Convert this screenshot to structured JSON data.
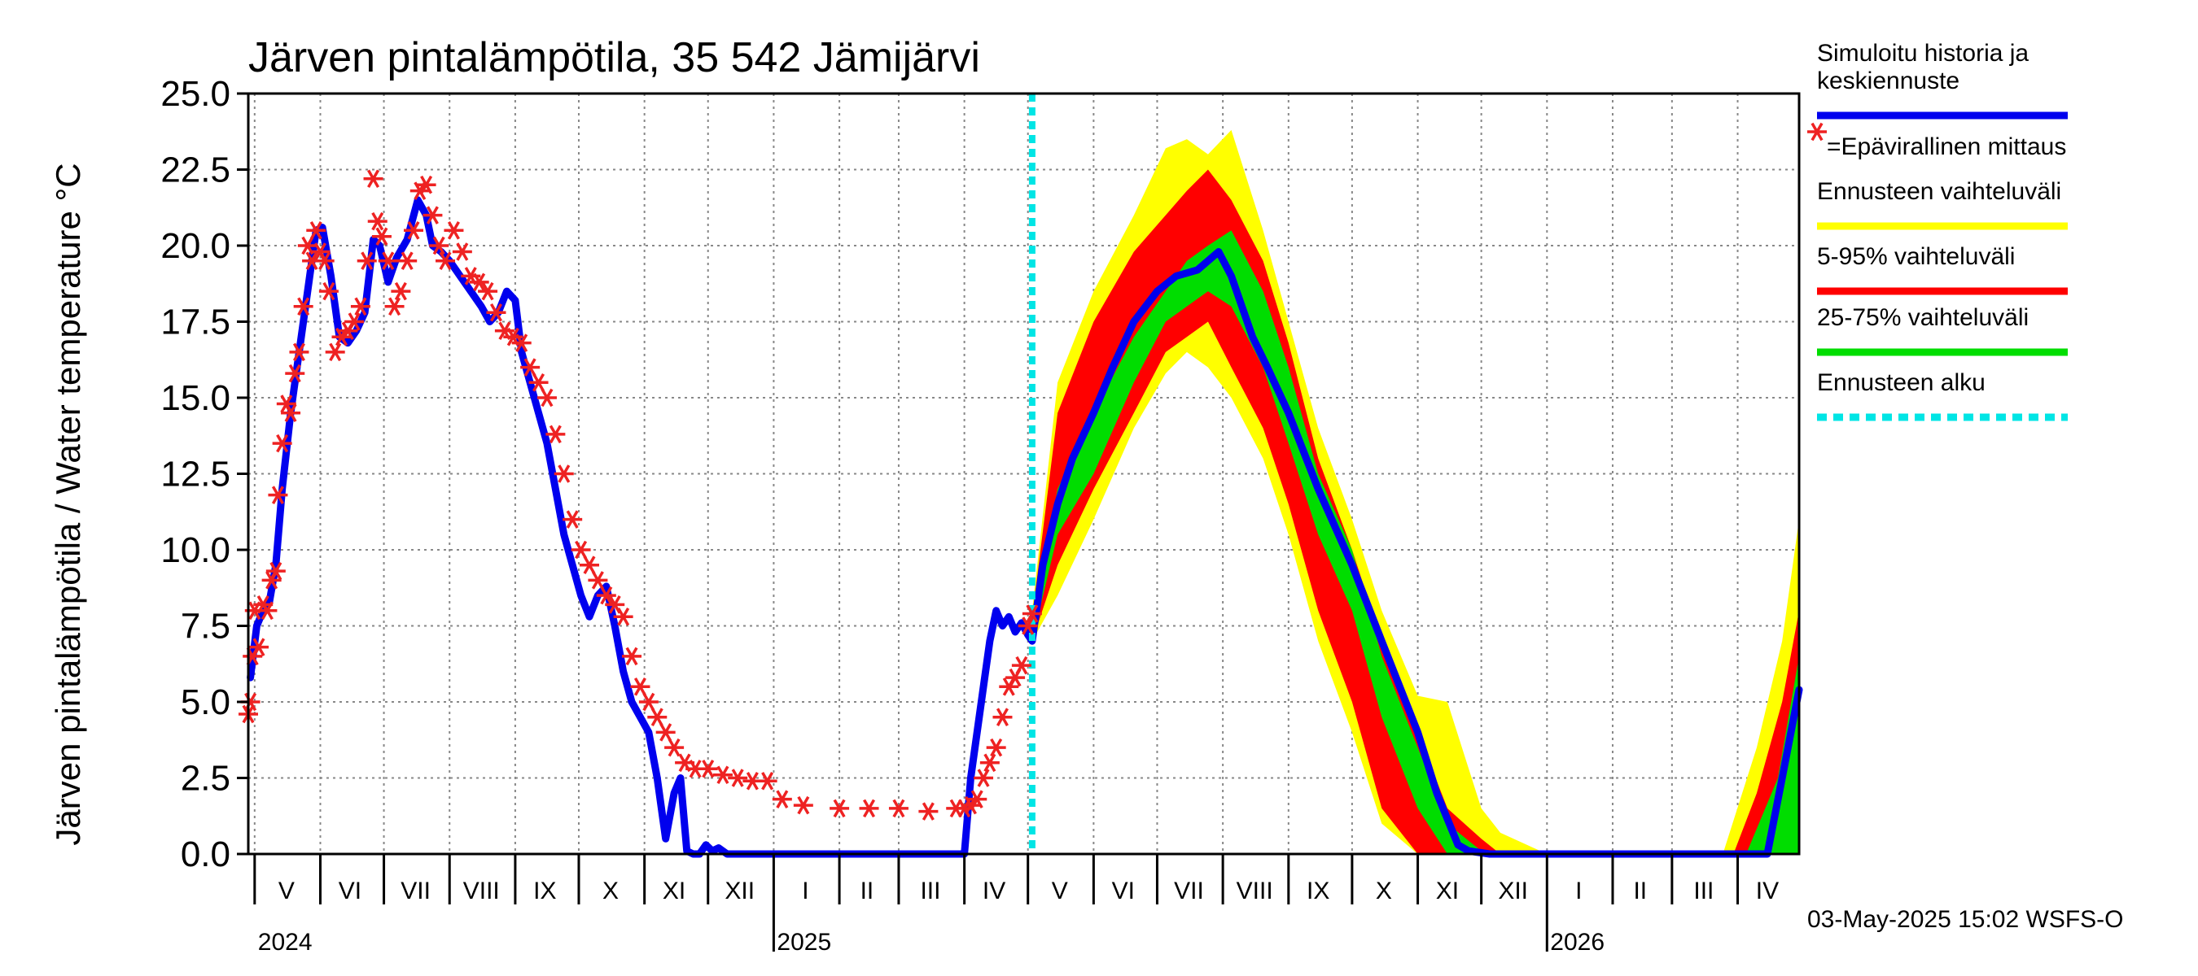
{
  "chart_data": {
    "type": "area",
    "title": "Järven pintalämpötila, 35 542 Jämijärvi",
    "ylabel": "Järven pintalämpötila / Water temperature °C",
    "xlabel": "",
    "ylim": [
      0,
      25
    ],
    "xlim": [
      "2024-04-28",
      "2026-04-30"
    ],
    "yticks": [
      "0.0",
      "2.5",
      "5.0",
      "7.5",
      "10.0",
      "12.5",
      "15.0",
      "17.5",
      "20.0",
      "22.5",
      "25.0"
    ],
    "grid": true,
    "legend_position": "right",
    "forecast_start": "2025-05-03",
    "month_labels": [
      {
        "label": "V",
        "date": "2024-05-16"
      },
      {
        "label": "VI",
        "date": "2024-06-15"
      },
      {
        "label": "VII",
        "date": "2024-07-16"
      },
      {
        "label": "VIII",
        "date": "2024-08-16"
      },
      {
        "label": "IX",
        "date": "2024-09-15"
      },
      {
        "label": "X",
        "date": "2024-10-16"
      },
      {
        "label": "XI",
        "date": "2024-11-15"
      },
      {
        "label": "XII",
        "date": "2024-12-16"
      },
      {
        "label": "I",
        "date": "2025-01-16"
      },
      {
        "label": "II",
        "date": "2025-02-14"
      },
      {
        "label": "III",
        "date": "2025-03-16"
      },
      {
        "label": "IV",
        "date": "2025-04-15"
      },
      {
        "label": "V",
        "date": "2025-05-16"
      },
      {
        "label": "VI",
        "date": "2025-06-15"
      },
      {
        "label": "VII",
        "date": "2025-07-16"
      },
      {
        "label": "VIII",
        "date": "2025-08-16"
      },
      {
        "label": "IX",
        "date": "2025-09-15"
      },
      {
        "label": "X",
        "date": "2025-10-16"
      },
      {
        "label": "XI",
        "date": "2025-11-15"
      },
      {
        "label": "XII",
        "date": "2025-12-16"
      },
      {
        "label": "I",
        "date": "2026-01-16"
      },
      {
        "label": "II",
        "date": "2026-02-14"
      },
      {
        "label": "III",
        "date": "2026-03-16"
      },
      {
        "label": "IV",
        "date": "2026-04-15"
      }
    ],
    "year_labels": [
      {
        "label": "2024",
        "date": "2024-05-01"
      },
      {
        "label": "2025",
        "date": "2025-01-01"
      },
      {
        "label": "2026",
        "date": "2026-01-01"
      }
    ],
    "series": [
      {
        "name": "Simuloitu historia ja keskiennuste",
        "color": "#0000ee",
        "x": [
          "2024-04-29",
          "2024-05-02",
          "2024-05-05",
          "2024-05-08",
          "2024-05-11",
          "2024-05-14",
          "2024-05-18",
          "2024-05-22",
          "2024-05-26",
          "2024-05-30",
          "2024-06-02",
          "2024-06-06",
          "2024-06-10",
          "2024-06-14",
          "2024-06-18",
          "2024-06-22",
          "2024-06-26",
          "2024-06-29",
          "2024-07-03",
          "2024-07-07",
          "2024-07-12",
          "2024-07-17",
          "2024-07-21",
          "2024-07-24",
          "2024-07-28",
          "2024-08-01",
          "2024-08-06",
          "2024-08-11",
          "2024-08-16",
          "2024-08-20",
          "2024-08-24",
          "2024-08-28",
          "2024-09-01",
          "2024-09-04",
          "2024-09-08",
          "2024-09-12",
          "2024-09-16",
          "2024-09-20",
          "2024-09-24",
          "2024-09-28",
          "2024-10-02",
          "2024-10-06",
          "2024-10-10",
          "2024-10-14",
          "2024-10-18",
          "2024-10-22",
          "2024-10-26",
          "2024-10-30",
          "2024-11-03",
          "2024-11-07",
          "2024-11-11",
          "2024-11-15",
          "2024-11-18",
          "2024-11-21",
          "2024-11-24",
          "2024-11-27",
          "2024-11-30",
          "2024-12-03",
          "2024-12-06",
          "2024-12-10",
          "2024-12-16",
          "2024-12-22",
          "2024-12-28",
          "2025-01-01",
          "2025-01-15",
          "2025-02-01",
          "2025-02-15",
          "2025-03-01",
          "2025-03-15",
          "2025-04-01",
          "2025-04-04",
          "2025-04-07",
          "2025-04-10",
          "2025-04-13",
          "2025-04-16",
          "2025-04-19",
          "2025-04-22",
          "2025-04-25",
          "2025-04-28",
          "2025-05-01",
          "2025-05-03",
          "2025-05-08",
          "2025-05-15",
          "2025-05-22",
          "2025-06-01",
          "2025-06-10",
          "2025-06-20",
          "2025-07-01",
          "2025-07-10",
          "2025-07-20",
          "2025-07-30",
          "2025-08-05",
          "2025-08-10",
          "2025-08-15",
          "2025-08-22",
          "2025-09-01",
          "2025-09-15",
          "2025-10-01",
          "2025-10-15",
          "2025-11-01",
          "2025-11-10",
          "2025-11-20",
          "2025-11-25",
          "2025-12-05",
          "2026-01-01",
          "2026-02-01",
          "2026-03-01",
          "2026-04-01",
          "2026-04-15",
          "2026-04-22",
          "2026-04-30"
        ],
        "y": [
          5.8,
          7.5,
          8.0,
          8.3,
          9.5,
          12.0,
          14.5,
          16.5,
          18.5,
          20.5,
          20.6,
          19.0,
          17.0,
          16.8,
          17.2,
          17.8,
          20.2,
          20.0,
          18.8,
          19.6,
          20.2,
          21.5,
          21.0,
          20.0,
          19.8,
          19.5,
          19.0,
          18.5,
          18.0,
          17.5,
          17.8,
          18.5,
          18.2,
          16.5,
          15.5,
          14.5,
          13.5,
          12.0,
          10.5,
          9.5,
          8.5,
          7.8,
          8.5,
          8.8,
          7.5,
          6.0,
          5.0,
          4.5,
          4.0,
          2.5,
          0.5,
          2.0,
          2.5,
          0.1,
          0.0,
          0.0,
          0.3,
          0.1,
          0.2,
          0.0,
          0.0,
          0.0,
          0.0,
          0.0,
          0.0,
          0.0,
          0.0,
          0.0,
          0.0,
          0.0,
          2.5,
          4.0,
          5.5,
          7.0,
          8.0,
          7.5,
          7.8,
          7.3,
          7.6,
          7.2,
          7.0,
          9.5,
          11.5,
          13.0,
          14.5,
          16.0,
          17.5,
          18.5,
          19.0,
          19.2,
          19.8,
          19.0,
          18.0,
          17.0,
          16.0,
          14.5,
          12.0,
          9.5,
          7.0,
          4.0,
          2.0,
          0.3,
          0.1,
          0.0,
          0.0,
          0.0,
          0.0,
          0.0,
          0.0,
          2.5,
          5.4
        ]
      },
      {
        "name": "=Epävirallinen mittaus",
        "color": "#ee2222",
        "marker": "asterisk",
        "x": [
          "2024-04-28",
          "2024-04-29",
          "2024-04-30",
          "2024-05-01",
          "2024-05-03",
          "2024-05-05",
          "2024-05-07",
          "2024-05-09",
          "2024-05-11",
          "2024-05-12",
          "2024-05-14",
          "2024-05-16",
          "2024-05-18",
          "2024-05-20",
          "2024-05-22",
          "2024-05-24",
          "2024-05-26",
          "2024-05-28",
          "2024-05-30",
          "2024-06-01",
          "2024-06-03",
          "2024-06-05",
          "2024-06-08",
          "2024-06-11",
          "2024-06-14",
          "2024-06-17",
          "2024-06-20",
          "2024-06-23",
          "2024-06-26",
          "2024-06-28",
          "2024-06-30",
          "2024-07-03",
          "2024-07-06",
          "2024-07-09",
          "2024-07-12",
          "2024-07-15",
          "2024-07-18",
          "2024-07-21",
          "2024-07-24",
          "2024-07-27",
          "2024-07-30",
          "2024-08-03",
          "2024-08-07",
          "2024-08-11",
          "2024-08-15",
          "2024-08-19",
          "2024-08-23",
          "2024-08-27",
          "2024-08-31",
          "2024-09-04",
          "2024-09-08",
          "2024-09-12",
          "2024-09-16",
          "2024-09-20",
          "2024-09-24",
          "2024-09-28",
          "2024-10-02",
          "2024-10-06",
          "2024-10-10",
          "2024-10-14",
          "2024-10-18",
          "2024-10-22",
          "2024-10-26",
          "2024-10-30",
          "2024-11-03",
          "2024-11-07",
          "2024-11-11",
          "2024-11-15",
          "2024-11-20",
          "2024-11-25",
          "2024-12-01",
          "2024-12-08",
          "2024-12-15",
          "2024-12-22",
          "2024-12-29",
          "2025-01-05",
          "2025-01-15",
          "2025-02-01",
          "2025-02-15",
          "2025-03-01",
          "2025-03-15",
          "2025-03-28",
          "2025-04-01",
          "2025-04-04",
          "2025-04-07",
          "2025-04-10",
          "2025-04-13",
          "2025-04-16",
          "2025-04-19",
          "2025-04-22",
          "2025-04-25",
          "2025-04-28",
          "2025-05-01",
          "2025-05-03"
        ],
        "y": [
          4.6,
          5.0,
          6.5,
          8.0,
          6.8,
          8.2,
          8.0,
          9.0,
          9.3,
          11.8,
          13.5,
          14.8,
          14.5,
          15.8,
          16.5,
          18.0,
          20.0,
          19.5,
          20.5,
          19.8,
          19.5,
          18.5,
          16.5,
          17.0,
          17.2,
          17.5,
          18.0,
          19.5,
          22.2,
          20.8,
          20.3,
          19.5,
          18.0,
          18.5,
          19.5,
          20.5,
          21.8,
          22.0,
          21.0,
          20.0,
          19.5,
          20.5,
          19.8,
          19.0,
          18.8,
          18.5,
          17.8,
          17.2,
          17.0,
          16.8,
          16.0,
          15.5,
          15.0,
          13.8,
          12.5,
          11.0,
          10.0,
          9.5,
          9.0,
          8.5,
          8.2,
          7.8,
          6.5,
          5.5,
          5.0,
          4.5,
          4.0,
          3.5,
          3.0,
          2.8,
          2.8,
          2.6,
          2.5,
          2.4,
          2.4,
          1.8,
          1.6,
          1.5,
          1.5,
          1.5,
          1.4,
          1.5,
          1.5,
          1.6,
          1.8,
          2.5,
          3.0,
          3.5,
          4.5,
          5.5,
          5.8,
          6.2,
          7.5,
          7.9
        ]
      },
      {
        "name": "Ennusteen vaihteluväli",
        "color": "#ffff00",
        "x": [
          "2025-05-03",
          "2025-05-15",
          "2025-06-01",
          "2025-06-20",
          "2025-07-05",
          "2025-07-15",
          "2025-07-25",
          "2025-08-05",
          "2025-08-20",
          "2025-09-01",
          "2025-09-15",
          "2025-10-01",
          "2025-10-15",
          "2025-11-01",
          "2025-11-15",
          "2025-12-01",
          "2025-12-10",
          "2026-01-01",
          "2026-03-25",
          "2026-04-10",
          "2026-04-22",
          "2026-04-30"
        ],
        "upper": [
          8.0,
          15.5,
          18.5,
          21.0,
          23.2,
          23.5,
          23.0,
          23.8,
          20.5,
          17.5,
          14.0,
          11.0,
          8.0,
          5.2,
          5.0,
          1.5,
          0.7,
          0.0,
          0.0,
          3.5,
          7.0,
          11.0
        ],
        "lower": [
          7.0,
          8.5,
          11.0,
          14.0,
          15.8,
          16.5,
          16.0,
          15.0,
          13.0,
          10.5,
          7.0,
          4.0,
          1.0,
          0.0,
          0.0,
          0.0,
          0.0,
          0.0,
          0.0,
          0.0,
          0.0,
          0.0
        ]
      },
      {
        "name": "5-95% vaihteluväli",
        "color": "#ff0000",
        "x": [
          "2025-05-03",
          "2025-05-15",
          "2025-06-01",
          "2025-06-20",
          "2025-07-05",
          "2025-07-15",
          "2025-07-25",
          "2025-08-05",
          "2025-08-20",
          "2025-09-01",
          "2025-09-15",
          "2025-10-01",
          "2025-10-15",
          "2025-11-01",
          "2025-11-15",
          "2025-12-01",
          "2025-12-10",
          "2026-01-01",
          "2026-03-30",
          "2026-04-10",
          "2026-04-22",
          "2026-04-30"
        ],
        "upper": [
          7.8,
          14.5,
          17.5,
          19.8,
          21.0,
          21.8,
          22.5,
          21.5,
          19.5,
          16.8,
          13.0,
          10.0,
          7.0,
          4.0,
          1.5,
          0.5,
          0.0,
          0.0,
          0.0,
          2.0,
          5.0,
          8.0
        ],
        "lower": [
          7.0,
          9.5,
          12.0,
          14.5,
          16.5,
          17.0,
          17.5,
          16.0,
          14.0,
          11.5,
          8.0,
          5.0,
          1.5,
          0.0,
          0.0,
          0.0,
          0.0,
          0.0,
          0.0,
          0.0,
          0.0,
          0.0
        ]
      },
      {
        "name": "25-75% vaihteluväli",
        "color": "#00dd00",
        "x": [
          "2025-05-03",
          "2025-05-15",
          "2025-06-01",
          "2025-06-20",
          "2025-07-05",
          "2025-07-15",
          "2025-07-25",
          "2025-08-05",
          "2025-08-20",
          "2025-09-01",
          "2025-09-15",
          "2025-10-01",
          "2025-10-15",
          "2025-11-01",
          "2025-11-15",
          "2025-12-01",
          "2026-01-01",
          "2026-04-05",
          "2026-04-20",
          "2026-04-30"
        ],
        "upper": [
          7.5,
          12.0,
          14.5,
          17.0,
          18.5,
          19.5,
          20.0,
          20.5,
          18.5,
          16.0,
          12.5,
          10.0,
          6.5,
          3.5,
          1.0,
          0.1,
          0.0,
          0.0,
          2.5,
          6.5
        ],
        "lower": [
          7.0,
          10.5,
          12.5,
          15.5,
          17.5,
          18.0,
          18.5,
          18.0,
          16.0,
          13.5,
          10.5,
          8.0,
          4.5,
          1.5,
          0.0,
          0.0,
          0.0,
          0.0,
          0.0,
          0.0
        ]
      },
      {
        "name": "Ennusteen alku",
        "color": "#00e5e5",
        "style": "dashed"
      }
    ]
  },
  "legend": {
    "items": [
      {
        "lines": [
          "Simuloitu historia ja",
          "keskiennuste"
        ],
        "color": "#0000ee",
        "kind": "line"
      },
      {
        "lines": [
          "=Epävirallinen mittaus"
        ],
        "color": "#ee2222",
        "kind": "marker"
      },
      {
        "lines": [
          "Ennusteen vaihteluväli"
        ],
        "color": "#ffff00",
        "kind": "line"
      },
      {
        "lines": [
          "5-95% vaihteluväli"
        ],
        "color": "#ff0000",
        "kind": "line"
      },
      {
        "lines": [
          "25-75% vaihteluväli"
        ],
        "color": "#00dd00",
        "kind": "line"
      },
      {
        "lines": [
          "Ennusteen alku"
        ],
        "color": "#00e5e5",
        "kind": "dashed"
      }
    ]
  },
  "footer": "03-May-2025 15:02 WSFS-O"
}
